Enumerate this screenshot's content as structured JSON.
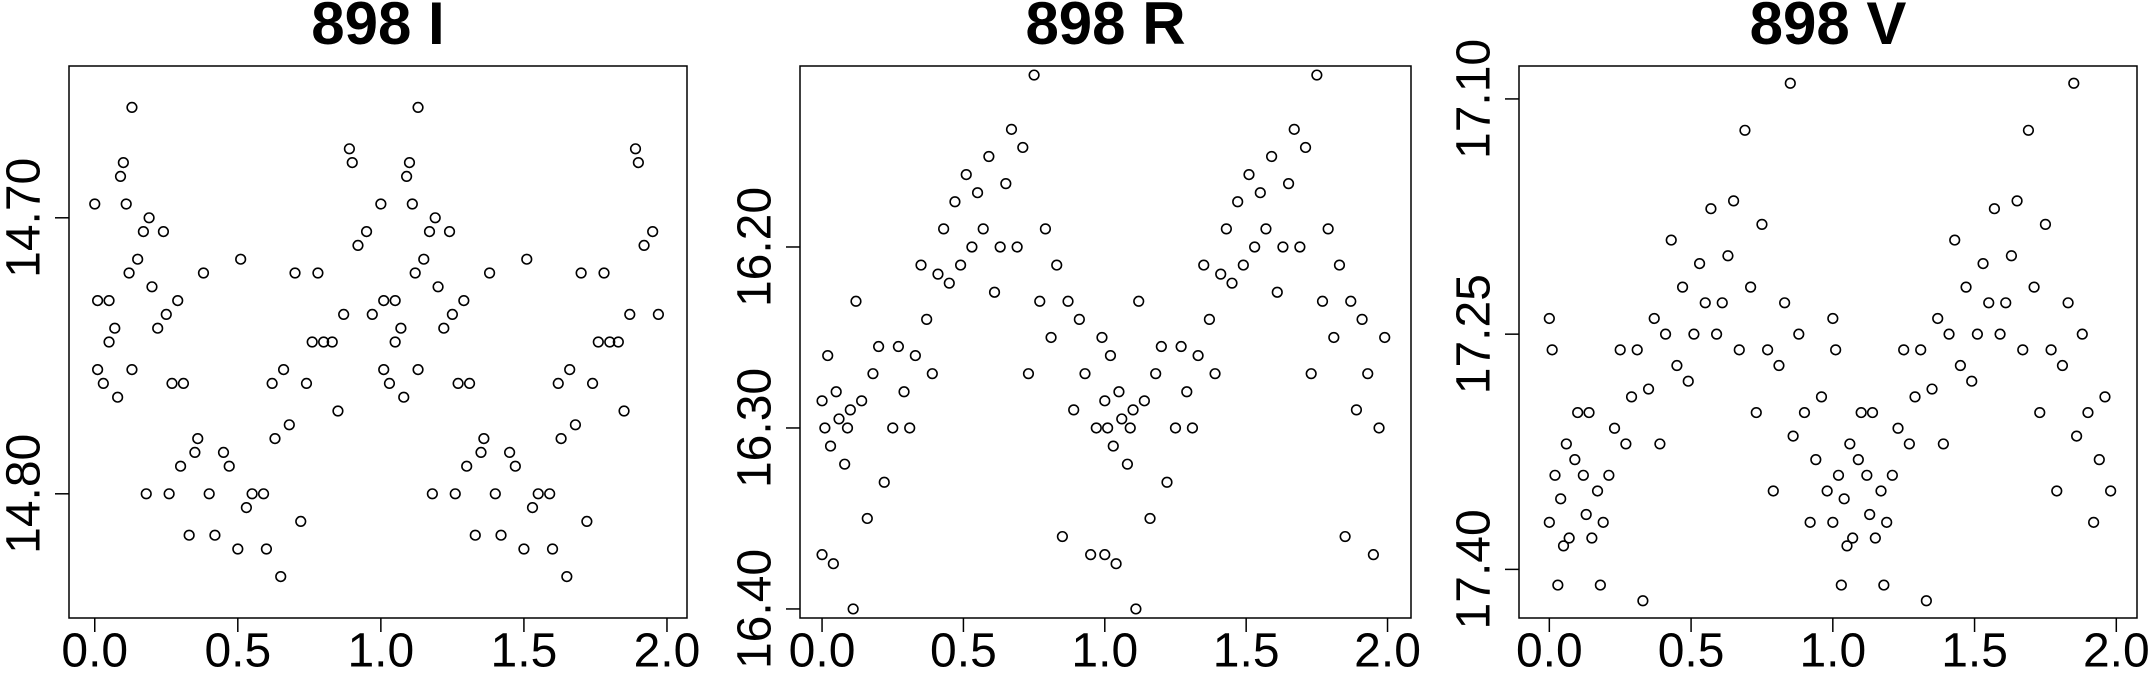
{
  "chart_data": [
    {
      "type": "scatter",
      "title": "898 I",
      "x": [
        0.0,
        0.01,
        0.01,
        0.03,
        0.05,
        0.05,
        0.07,
        0.08,
        0.09,
        0.1,
        0.11,
        0.12,
        0.13,
        0.13,
        0.15,
        0.17,
        0.18,
        0.19,
        0.2,
        0.22,
        0.24,
        0.25,
        0.26,
        0.27,
        0.29,
        0.3,
        0.31,
        0.33,
        0.35,
        0.36,
        0.38,
        0.4,
        0.42,
        0.45,
        0.47,
        0.5,
        0.51,
        0.53,
        0.55,
        0.59,
        0.6,
        0.62,
        0.63,
        0.65,
        0.66,
        0.68,
        0.7,
        0.72,
        0.74,
        0.76,
        0.78,
        0.8,
        0.83,
        0.85,
        0.87,
        0.89,
        0.9,
        0.92,
        0.95,
        0.97,
        1.0,
        1.01,
        1.01,
        1.03,
        1.05,
        1.05,
        1.07,
        1.08,
        1.09,
        1.1,
        1.11,
        1.12,
        1.13,
        1.13,
        1.15,
        1.17,
        1.18,
        1.19,
        1.2,
        1.22,
        1.24,
        1.25,
        1.26,
        1.27,
        1.29,
        1.3,
        1.31,
        1.33,
        1.35,
        1.36,
        1.38,
        1.4,
        1.42,
        1.45,
        1.47,
        1.5,
        1.51,
        1.53,
        1.55,
        1.59,
        1.6,
        1.62,
        1.63,
        1.65,
        1.66,
        1.68,
        1.7,
        1.72,
        1.74,
        1.76,
        1.78,
        1.8,
        1.83,
        1.85,
        1.87,
        1.89,
        1.9,
        1.92,
        1.95,
        1.97
      ],
      "y": [
        14.695,
        14.755,
        14.73,
        14.76,
        14.745,
        14.73,
        14.74,
        14.765,
        14.685,
        14.68,
        14.695,
        14.72,
        14.66,
        14.755,
        14.715,
        14.705,
        14.8,
        14.7,
        14.725,
        14.74,
        14.705,
        14.735,
        14.8,
        14.76,
        14.73,
        14.79,
        14.76,
        14.815,
        14.785,
        14.78,
        14.72,
        14.8,
        14.815,
        14.785,
        14.79,
        14.82,
        14.715,
        14.805,
        14.8,
        14.8,
        14.82,
        14.76,
        14.78,
        14.83,
        14.755,
        14.775,
        14.72,
        14.81,
        14.76,
        14.745,
        14.72,
        14.745,
        14.745,
        14.77,
        14.735,
        14.675,
        14.68,
        14.71,
        14.705,
        14.735,
        14.695,
        14.755,
        14.73,
        14.76,
        14.745,
        14.73,
        14.74,
        14.765,
        14.685,
        14.68,
        14.695,
        14.72,
        14.66,
        14.755,
        14.715,
        14.705,
        14.8,
        14.7,
        14.725,
        14.74,
        14.705,
        14.735,
        14.8,
        14.76,
        14.73,
        14.79,
        14.76,
        14.815,
        14.785,
        14.78,
        14.72,
        14.8,
        14.815,
        14.785,
        14.79,
        14.82,
        14.715,
        14.805,
        14.8,
        14.8,
        14.82,
        14.76,
        14.78,
        14.83,
        14.755,
        14.775,
        14.72,
        14.81,
        14.76,
        14.745,
        14.72,
        14.745,
        14.745,
        14.77,
        14.735,
        14.675,
        14.68,
        14.71,
        14.705,
        14.735
      ],
      "xlim": [
        -0.09,
        2.07
      ],
      "ylim": [
        14.845,
        14.645
      ],
      "xticks": [
        {
          "value": 0,
          "label": "0.0"
        },
        {
          "value": 0.5,
          "label": "0.5"
        },
        {
          "value": 1,
          "label": "1.0"
        },
        {
          "value": 1.5,
          "label": "1.5"
        },
        {
          "value": 2,
          "label": "2.0"
        }
      ],
      "yticks": [
        {
          "value": 14.7,
          "label": "14.70"
        },
        {
          "value": 14.8,
          "label": "14.80"
        }
      ],
      "color": "#000000"
    },
    {
      "type": "scatter",
      "title": "898 R",
      "x": [
        0.0,
        0.0,
        0.01,
        0.02,
        0.03,
        0.04,
        0.05,
        0.06,
        0.08,
        0.09,
        0.1,
        0.11,
        0.12,
        0.14,
        0.16,
        0.18,
        0.2,
        0.22,
        0.25,
        0.27,
        0.29,
        0.31,
        0.33,
        0.35,
        0.37,
        0.39,
        0.41,
        0.43,
        0.45,
        0.47,
        0.49,
        0.51,
        0.53,
        0.55,
        0.57,
        0.59,
        0.61,
        0.63,
        0.65,
        0.67,
        0.69,
        0.71,
        0.73,
        0.75,
        0.77,
        0.79,
        0.81,
        0.83,
        0.85,
        0.87,
        0.89,
        0.91,
        0.93,
        0.95,
        0.97,
        0.99,
        1.0,
        1.0,
        1.01,
        1.02,
        1.03,
        1.04,
        1.05,
        1.06,
        1.08,
        1.09,
        1.1,
        1.11,
        1.12,
        1.14,
        1.16,
        1.18,
        1.2,
        1.22,
        1.25,
        1.27,
        1.29,
        1.31,
        1.33,
        1.35,
        1.37,
        1.39,
        1.41,
        1.43,
        1.45,
        1.47,
        1.49,
        1.51,
        1.53,
        1.55,
        1.57,
        1.59,
        1.61,
        1.63,
        1.65,
        1.67,
        1.69,
        1.71,
        1.73,
        1.75,
        1.77,
        1.79,
        1.81,
        1.83,
        1.85,
        1.87,
        1.89,
        1.91,
        1.93,
        1.95,
        1.97,
        1.99
      ],
      "y": [
        16.285,
        16.37,
        16.3,
        16.26,
        16.31,
        16.375,
        16.28,
        16.295,
        16.32,
        16.3,
        16.29,
        16.4,
        16.23,
        16.285,
        16.35,
        16.27,
        16.255,
        16.33,
        16.3,
        16.255,
        16.28,
        16.3,
        16.26,
        16.21,
        16.24,
        16.27,
        16.215,
        16.19,
        16.22,
        16.175,
        16.21,
        16.16,
        16.2,
        16.17,
        16.19,
        16.15,
        16.225,
        16.2,
        16.165,
        16.135,
        16.2,
        16.145,
        16.27,
        16.105,
        16.23,
        16.19,
        16.25,
        16.21,
        16.36,
        16.23,
        16.29,
        16.24,
        16.27,
        16.37,
        16.3,
        16.25,
        16.285,
        16.37,
        16.3,
        16.26,
        16.31,
        16.375,
        16.28,
        16.295,
        16.32,
        16.3,
        16.29,
        16.4,
        16.23,
        16.285,
        16.35,
        16.27,
        16.255,
        16.33,
        16.3,
        16.255,
        16.28,
        16.3,
        16.26,
        16.21,
        16.24,
        16.27,
        16.215,
        16.19,
        16.22,
        16.175,
        16.21,
        16.16,
        16.2,
        16.17,
        16.19,
        16.15,
        16.225,
        16.2,
        16.165,
        16.135,
        16.2,
        16.145,
        16.27,
        16.105,
        16.23,
        16.19,
        16.25,
        16.21,
        16.36,
        16.23,
        16.29,
        16.24,
        16.27,
        16.37,
        16.3,
        16.25
      ],
      "xlim": [
        -0.078,
        2.083
      ],
      "ylim": [
        16.405,
        16.1
      ],
      "xticks": [
        {
          "value": 0,
          "label": "0.0"
        },
        {
          "value": 0.5,
          "label": "0.5"
        },
        {
          "value": 1,
          "label": "1.0"
        },
        {
          "value": 1.5,
          "label": "1.5"
        },
        {
          "value": 2,
          "label": "2.0"
        }
      ],
      "yticks": [
        {
          "value": 16.2,
          "label": "16.20"
        },
        {
          "value": 16.3,
          "label": "16.30"
        },
        {
          "value": 16.4,
          "label": "16.40"
        }
      ],
      "color": "#000000"
    },
    {
      "type": "scatter",
      "title": "898 V",
      "x": [
        0.0,
        0.0,
        0.01,
        0.02,
        0.03,
        0.04,
        0.05,
        0.06,
        0.07,
        0.09,
        0.1,
        0.12,
        0.13,
        0.14,
        0.15,
        0.17,
        0.18,
        0.19,
        0.21,
        0.23,
        0.25,
        0.27,
        0.29,
        0.31,
        0.33,
        0.35,
        0.37,
        0.39,
        0.41,
        0.43,
        0.45,
        0.47,
        0.49,
        0.51,
        0.53,
        0.55,
        0.57,
        0.59,
        0.61,
        0.63,
        0.65,
        0.67,
        0.69,
        0.71,
        0.73,
        0.75,
        0.77,
        0.79,
        0.81,
        0.83,
        0.85,
        0.86,
        0.88,
        0.9,
        0.92,
        0.94,
        0.96,
        0.98,
        1.0,
        1.0,
        1.01,
        1.02,
        1.03,
        1.04,
        1.05,
        1.06,
        1.07,
        1.09,
        1.1,
        1.12,
        1.13,
        1.14,
        1.15,
        1.17,
        1.18,
        1.19,
        1.21,
        1.23,
        1.25,
        1.27,
        1.29,
        1.31,
        1.33,
        1.35,
        1.37,
        1.39,
        1.41,
        1.43,
        1.45,
        1.47,
        1.49,
        1.51,
        1.53,
        1.55,
        1.57,
        1.59,
        1.61,
        1.63,
        1.65,
        1.67,
        1.69,
        1.71,
        1.73,
        1.75,
        1.77,
        1.79,
        1.81,
        1.83,
        1.85,
        1.86,
        1.88,
        1.9,
        1.92,
        1.94,
        1.96,
        1.98
      ],
      "y": [
        17.37,
        17.24,
        17.26,
        17.34,
        17.41,
        17.355,
        17.385,
        17.32,
        17.38,
        17.33,
        17.3,
        17.34,
        17.365,
        17.3,
        17.38,
        17.35,
        17.41,
        17.37,
        17.34,
        17.31,
        17.26,
        17.32,
        17.29,
        17.26,
        17.42,
        17.285,
        17.24,
        17.32,
        17.25,
        17.19,
        17.27,
        17.22,
        17.28,
        17.25,
        17.205,
        17.23,
        17.17,
        17.25,
        17.23,
        17.2,
        17.165,
        17.26,
        17.12,
        17.22,
        17.3,
        17.18,
        17.26,
        17.35,
        17.27,
        17.23,
        17.09,
        17.315,
        17.25,
        17.3,
        17.37,
        17.33,
        17.29,
        17.35,
        17.37,
        17.24,
        17.26,
        17.34,
        17.41,
        17.355,
        17.385,
        17.32,
        17.38,
        17.33,
        17.3,
        17.34,
        17.365,
        17.3,
        17.38,
        17.35,
        17.41,
        17.37,
        17.34,
        17.31,
        17.26,
        17.32,
        17.29,
        17.26,
        17.42,
        17.285,
        17.24,
        17.32,
        17.25,
        17.19,
        17.27,
        17.22,
        17.28,
        17.25,
        17.205,
        17.23,
        17.17,
        17.25,
        17.23,
        17.2,
        17.165,
        17.26,
        17.12,
        17.22,
        17.3,
        17.18,
        17.26,
        17.35,
        17.27,
        17.23,
        17.09,
        17.315,
        17.25,
        17.3,
        17.37,
        17.33,
        17.29,
        17.35
      ],
      "xlim": [
        -0.107,
        2.073
      ],
      "ylim": [
        17.431,
        17.079
      ],
      "xticks": [
        {
          "value": 0,
          "label": "0.0"
        },
        {
          "value": 0.5,
          "label": "0.5"
        },
        {
          "value": 1,
          "label": "1.0"
        },
        {
          "value": 1.5,
          "label": "1.5"
        },
        {
          "value": 2,
          "label": "2.0"
        }
      ],
      "yticks": [
        {
          "value": 17.1,
          "label": "17.10"
        },
        {
          "value": 17.25,
          "label": "17.25"
        },
        {
          "value": 17.4,
          "label": "17.40"
        }
      ],
      "color": "#000000"
    }
  ]
}
